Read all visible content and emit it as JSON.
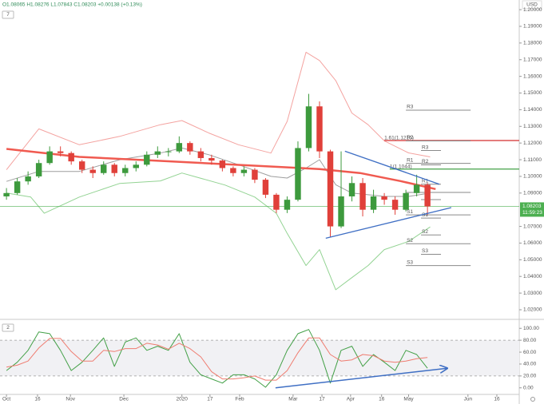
{
  "chart_data": {
    "type": "candlestick",
    "header": "O1.08065 H1.08276 L1.07843 C1.08203 +0.00138 (+0.13%)",
    "currency": "USD",
    "indicator_count": "7",
    "x": [
      0,
      4,
      8,
      12,
      16,
      20,
      24,
      28,
      32,
      36,
      40,
      44,
      48,
      52,
      56,
      60,
      64,
      68,
      72,
      76,
      80,
      84,
      88,
      92,
      96,
      100,
      104,
      108,
      112,
      116,
      120,
      124,
      128,
      132,
      136,
      140,
      144,
      148,
      152,
      156
    ],
    "open": [
      1.088,
      1.09,
      1.097,
      1.1,
      1.108,
      1.115,
      1.114,
      1.109,
      1.104,
      1.102,
      1.107,
      1.102,
      1.105,
      1.107,
      1.113,
      1.115,
      1.115,
      1.12,
      1.115,
      1.111,
      1.1095,
      1.105,
      1.102,
      1.104,
      1.098,
      1.089,
      1.08,
      1.086,
      1.117,
      1.142,
      1.115,
      1.07,
      1.088,
      1.096,
      1.08,
      1.088,
      1.086,
      1.08,
      1.09,
      1.095
    ],
    "high": [
      1.093,
      1.099,
      1.103,
      1.11,
      1.118,
      1.118,
      1.115,
      1.11,
      1.106,
      1.109,
      1.108,
      1.107,
      1.109,
      1.115,
      1.118,
      1.117,
      1.124,
      1.121,
      1.117,
      1.113,
      1.11,
      1.106,
      1.106,
      1.105,
      1.099,
      1.09,
      1.088,
      1.121,
      1.1495,
      1.145,
      1.116,
      1.115,
      1.1,
      1.099,
      1.092,
      1.09,
      1.088,
      1.092,
      1.101,
      1.096
    ],
    "low": [
      1.086,
      1.089,
      1.095,
      1.099,
      1.107,
      1.112,
      1.107,
      1.102,
      1.099,
      1.101,
      1.1,
      1.1,
      1.103,
      1.106,
      1.111,
      1.112,
      1.114,
      1.113,
      1.109,
      1.107,
      1.103,
      1.1,
      1.1,
      1.096,
      1.087,
      1.078,
      1.078,
      1.085,
      1.115,
      1.111,
      1.0636,
      1.069,
      1.085,
      1.076,
      1.078,
      1.083,
      1.077,
      1.079,
      1.088,
      1.077
    ],
    "close": [
      1.09,
      1.097,
      1.1,
      1.108,
      1.115,
      1.114,
      1.109,
      1.104,
      1.102,
      1.107,
      1.102,
      1.105,
      1.107,
      1.113,
      1.115,
      1.115,
      1.12,
      1.115,
      1.111,
      1.1095,
      1.105,
      1.102,
      1.104,
      1.098,
      1.089,
      1.08,
      1.086,
      1.117,
      1.142,
      1.115,
      1.07,
      1.088,
      1.096,
      1.08,
      1.088,
      1.086,
      1.08,
      1.09,
      1.095,
      1.082
    ],
    "up_color": "#3d9a3d",
    "down_color": "#e0403a",
    "xlim": [
      -2.4,
      190
    ],
    "xticks": [
      {
        "value": 0,
        "label": "Oct"
      },
      {
        "value": 11.5,
        "label": "16"
      },
      {
        "value": 23.7,
        "label": "Nov"
      },
      {
        "value": 43.5,
        "label": "Dec"
      },
      {
        "value": 65,
        "label": "2020"
      },
      {
        "value": 75.4,
        "label": "17"
      },
      {
        "value": 86.4,
        "label": "Feb"
      },
      {
        "value": 106.2,
        "label": "Mar"
      },
      {
        "value": 116.9,
        "label": "17"
      },
      {
        "value": 127.5,
        "label": "Apr"
      },
      {
        "value": 139,
        "label": "16"
      },
      {
        "value": 149,
        "label": "May"
      },
      {
        "value": 171,
        "label": "Jun"
      },
      {
        "value": 181.7,
        "label": "16"
      }
    ],
    "ylim": [
      1.0152,
      1.2058
    ],
    "yticks": [
      {
        "value": 1.2,
        "label": "1.20000"
      },
      {
        "value": 1.19,
        "label": "1.19000"
      },
      {
        "value": 1.18,
        "label": "1.18000"
      },
      {
        "value": 1.17,
        "label": "1.17000"
      },
      {
        "value": 1.16,
        "label": "1.16000"
      },
      {
        "value": 1.15,
        "label": "1.15000"
      },
      {
        "value": 1.14,
        "label": "1.14000"
      },
      {
        "value": 1.13,
        "label": "1.13000"
      },
      {
        "value": 1.12,
        "label": "1.12000"
      },
      {
        "value": 1.11,
        "label": "1.11000"
      },
      {
        "value": 1.1,
        "label": "1.10000"
      },
      {
        "value": 1.09,
        "label": "1.09000"
      },
      {
        "value": 1.07,
        "label": "1.07000"
      },
      {
        "value": 1.06,
        "label": "1.06000"
      },
      {
        "value": 1.05,
        "label": "1.05000"
      },
      {
        "value": 1.04,
        "label": "1.04000"
      },
      {
        "value": 1.03,
        "label": "1.03000"
      },
      {
        "value": 1.02,
        "label": "1.02000"
      }
    ],
    "last_price": 1.08203,
    "last_color": "#4caf50",
    "countdown": "11:59:23",
    "overlays": [
      {
        "color": "#f4a3a0",
        "width": 1,
        "x": [
          0,
          12,
          27,
          42,
          57,
          65,
          75,
          86,
          98,
          104,
          111,
          116,
          122,
          128,
          134,
          140,
          149,
          157
        ],
        "values": [
          1.104,
          1.1285,
          1.119,
          1.124,
          1.131,
          1.1335,
          1.126,
          1.119,
          1.114,
          1.133,
          1.1745,
          1.1695,
          1.1575,
          1.138,
          1.131,
          1.1213,
          1.1141,
          1.1117
        ]
      },
      {
        "color": "#93d393",
        "width": 1,
        "x": [
          0,
          9,
          14,
          27,
          42,
          57,
          65,
          81,
          92,
          100,
          104,
          111,
          116,
          122,
          128,
          134,
          140,
          149,
          157
        ],
        "values": [
          1.09,
          1.0876,
          1.0779,
          1.0876,
          1.0958,
          1.0973,
          1.102,
          1.0948,
          1.0876,
          1.0779,
          1.0658,
          1.0465,
          1.0561,
          1.032,
          1.0393,
          1.0465,
          1.0561,
          1.061,
          1.0697
        ]
      },
      {
        "color": "#9e9e9e",
        "width": 1,
        "x": [
          0,
          12,
          27,
          42,
          57,
          65,
          75,
          86,
          98,
          104,
          111,
          116,
          122,
          128,
          140,
          149,
          157
        ],
        "values": [
          1.097,
          1.103,
          1.103,
          1.11,
          1.114,
          1.117,
          1.113,
          1.107,
          1.1,
          1.099,
          1.105,
          1.11,
          1.095,
          1.09,
          1.088,
          1.088,
          1.09
        ]
      },
      {
        "color": "#f05a50",
        "width": 2.5,
        "x": [
          0,
          27,
          57,
          86,
          116,
          131,
          146,
          159
        ],
        "values": [
          1.1165,
          1.1117,
          1.1093,
          1.1069,
          1.1044,
          1.102,
          1.0972,
          1.0924
        ]
      }
    ],
    "levels": [
      {
        "value": 1.1215,
        "label": "1.61(1.1215)",
        "x": 140,
        "color": "#d32f2f"
      },
      {
        "value": 1.1044,
        "label": "1(1.1044)",
        "x": 142,
        "color": "#43a047"
      }
    ],
    "pivots": [
      {
        "x": [
          148,
          172
        ],
        "labels": [
          "R3",
          "R2",
          "R1",
          null,
          "S1",
          "S2",
          "S3"
        ],
        "values": [
          1.1397,
          1.1213,
          1.1078,
          1.0904,
          1.0769,
          1.0596,
          1.0465
        ]
      },
      {
        "x": [
          153.6,
          161
        ],
        "labels": [
          "R3",
          "R2",
          "R1",
          null,
          "S1",
          "S2",
          "S3"
        ],
        "values": [
          1.1155,
          1.1069,
          1.0953,
          1.0861,
          1.075,
          1.0649,
          1.0533
        ]
      }
    ],
    "trendlines": [
      {
        "color": "#3f6fc4",
        "x": [
          125.4,
          160.4
        ],
        "values": [
          1.1151,
          1.0953
        ]
      },
      {
        "color": "#3f6fc4",
        "x": [
          118.3,
          164.8
        ],
        "values": [
          1.0629,
          1.0813
        ]
      }
    ],
    "oscillator": {
      "type": "line",
      "indicator_count": "2",
      "ylim": [
        -12.4,
        112.4
      ],
      "yticks": [
        {
          "value": 100,
          "label": "100.00"
        },
        {
          "value": 80,
          "label": "80.00"
        },
        {
          "value": 60,
          "label": "60.00"
        },
        {
          "value": 40,
          "label": "40.00"
        },
        {
          "value": 20,
          "label": "20.00"
        },
        {
          "value": 0,
          "label": "0.00"
        }
      ],
      "bands": [
        20,
        80
      ],
      "series": [
        {
          "color": "#43a047",
          "values": [
            29,
            43,
            63,
            94,
            91,
            63,
            29,
            43,
            63,
            84,
            36,
            77,
            84,
            63,
            70,
            63,
            91,
            43,
            22,
            15,
            8,
            22,
            22,
            15,
            1,
            22,
            63,
            91,
            98,
            63,
            8,
            63,
            70,
            36,
            56,
            43,
            29,
            63,
            56,
            33
          ]
        },
        {
          "color": "#ef7c70",
          "values": [
            35,
            38,
            45,
            67,
            83,
            83,
            61,
            45,
            45,
            63,
            61,
            66,
            66,
            75,
            72,
            65,
            75,
            66,
            52,
            27,
            15,
            15,
            17,
            20,
            13,
            13,
            29,
            59,
            84,
            84,
            56,
            45,
            47,
            56,
            54,
            45,
            43,
            45,
            49,
            51
          ]
        }
      ],
      "trendline": {
        "color": "#3f6fc4",
        "x": [
          99.7,
          163.3
        ],
        "values": [
          0,
          33
        ]
      }
    }
  }
}
